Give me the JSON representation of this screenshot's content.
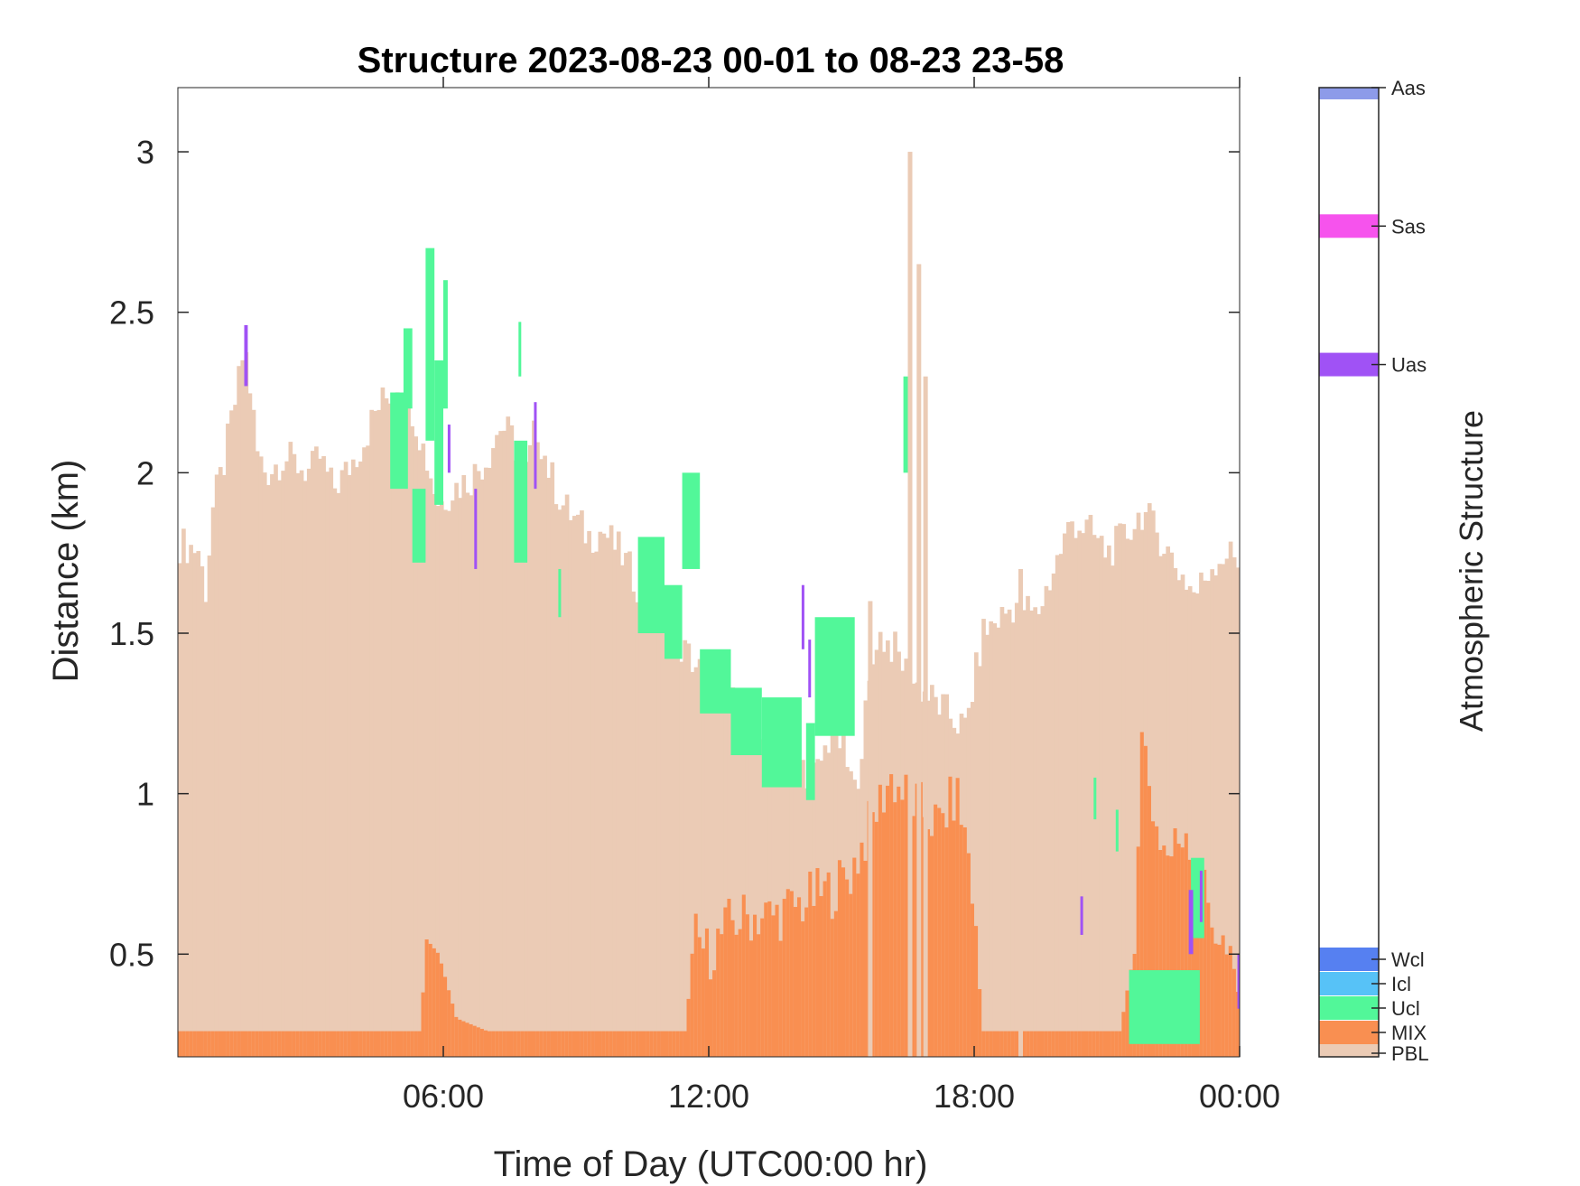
{
  "chart_data": {
    "type": "heatmap",
    "title": "Structure 2023-08-23 00-01 to 08-23 23-58",
    "xlabel": "Time of Day (UTC00:00 hr)",
    "ylabel": "Distance (km)",
    "colorbar_label": "Atmospheric Structure",
    "xlim": [
      0,
      24
    ],
    "ylim": [
      0.18,
      3.2
    ],
    "x_ticks": [
      {
        "value": 6,
        "label": "06:00"
      },
      {
        "value": 12,
        "label": "12:00"
      },
      {
        "value": 18,
        "label": "18:00"
      },
      {
        "value": 24,
        "label": "00:00"
      }
    ],
    "y_ticks": [
      {
        "value": 0.5,
        "label": "0.5"
      },
      {
        "value": 1,
        "label": "1"
      },
      {
        "value": 1.5,
        "label": "1.5"
      },
      {
        "value": 2,
        "label": "2"
      },
      {
        "value": 2.5,
        "label": "2.5"
      },
      {
        "value": 3,
        "label": "3"
      }
    ],
    "classes": [
      {
        "label": "PBL",
        "color": "#ebcbb5"
      },
      {
        "label": "MIX",
        "color": "#f98f51"
      },
      {
        "label": "Ucl",
        "color": "#52f799"
      },
      {
        "label": "Icl",
        "color": "#57c2f7"
      },
      {
        "label": "Wcl",
        "color": "#5680f1"
      },
      {
        "label": "Uas",
        "color": "#a052f5"
      },
      {
        "label": "Sas",
        "color": "#f653ed"
      },
      {
        "label": "Aas",
        "color": "#8d9be9"
      }
    ],
    "pbl_top_profile": [
      [
        0.0,
        1.78
      ],
      [
        0.5,
        1.76
      ],
      [
        0.6,
        1.6
      ],
      [
        0.8,
        1.9
      ],
      [
        1.0,
        2.0
      ],
      [
        1.2,
        2.15
      ],
      [
        1.4,
        2.3
      ],
      [
        1.5,
        2.4
      ],
      [
        1.6,
        2.3
      ],
      [
        1.8,
        2.05
      ],
      [
        2.0,
        2.0
      ],
      [
        2.4,
        2.05
      ],
      [
        3.0,
        2.0
      ],
      [
        3.2,
        2.05
      ],
      [
        3.5,
        1.95
      ],
      [
        3.8,
        2.0
      ],
      [
        4.0,
        2.05
      ],
      [
        4.2,
        2.1
      ],
      [
        4.5,
        2.2
      ],
      [
        4.8,
        2.25
      ],
      [
        5.0,
        2.3
      ],
      [
        5.3,
        2.2
      ],
      [
        5.6,
        2.05
      ],
      [
        5.9,
        1.9
      ],
      [
        6.2,
        1.95
      ],
      [
        6.6,
        1.98
      ],
      [
        7.0,
        2.05
      ],
      [
        7.3,
        2.15
      ],
      [
        7.6,
        2.1
      ],
      [
        7.8,
        1.95
      ],
      [
        8.1,
        2.15
      ],
      [
        8.4,
        2.0
      ],
      [
        8.7,
        1.9
      ],
      [
        9.0,
        1.85
      ],
      [
        9.3,
        1.8
      ],
      [
        9.6,
        1.82
      ],
      [
        10.0,
        1.75
      ],
      [
        10.4,
        1.65
      ],
      [
        10.8,
        1.55
      ],
      [
        11.2,
        1.48
      ],
      [
        11.6,
        1.42
      ],
      [
        12.0,
        1.35
      ],
      [
        12.4,
        1.3
      ],
      [
        12.8,
        1.25
      ],
      [
        13.2,
        1.2
      ],
      [
        13.6,
        1.15
      ],
      [
        14.0,
        1.1
      ],
      [
        14.4,
        1.05
      ],
      [
        14.8,
        1.2
      ],
      [
        15.0,
        1.15
      ],
      [
        15.3,
        1.0
      ],
      [
        15.8,
        1.5
      ],
      [
        16.2,
        1.45
      ],
      [
        16.6,
        1.35
      ],
      [
        17.0,
        1.3
      ],
      [
        17.4,
        1.25
      ],
      [
        17.8,
        1.2
      ],
      [
        18.2,
        1.5
      ],
      [
        18.6,
        1.55
      ],
      [
        19.0,
        1.6
      ],
      [
        19.4,
        1.55
      ],
      [
        19.8,
        1.7
      ],
      [
        20.2,
        1.85
      ],
      [
        20.6,
        1.82
      ],
      [
        21.0,
        1.75
      ],
      [
        21.4,
        1.8
      ],
      [
        21.8,
        1.88
      ],
      [
        22.2,
        1.8
      ],
      [
        22.6,
        1.7
      ],
      [
        23.0,
        1.62
      ],
      [
        23.4,
        1.72
      ],
      [
        23.7,
        1.75
      ],
      [
        24.0,
        1.72
      ]
    ],
    "pbl_spikes": [
      [
        16.5,
        3.0
      ],
      [
        16.7,
        2.65
      ],
      [
        16.85,
        2.3
      ],
      [
        15.6,
        1.6
      ],
      [
        19.0,
        1.7
      ]
    ],
    "mix_profile": [
      [
        0.0,
        0.26
      ],
      [
        5.5,
        0.26
      ],
      [
        5.6,
        0.55
      ],
      [
        5.9,
        0.5
      ],
      [
        6.3,
        0.3
      ],
      [
        7.0,
        0.26
      ],
      [
        11.5,
        0.26
      ],
      [
        11.7,
        0.55
      ],
      [
        12.0,
        0.5
      ],
      [
        12.5,
        0.6
      ],
      [
        13.0,
        0.62
      ],
      [
        13.5,
        0.62
      ],
      [
        14.0,
        0.65
      ],
      [
        14.4,
        0.68
      ],
      [
        14.8,
        0.7
      ],
      [
        15.2,
        0.75
      ],
      [
        15.5,
        0.85
      ],
      [
        15.8,
        0.95
      ],
      [
        16.1,
        1.05
      ],
      [
        16.4,
        1.0
      ],
      [
        16.8,
        0.95
      ],
      [
        17.2,
        0.9
      ],
      [
        17.6,
        1.0
      ],
      [
        17.9,
        0.8
      ],
      [
        18.2,
        0.26
      ],
      [
        21.3,
        0.26
      ],
      [
        21.6,
        0.5
      ],
      [
        21.8,
        1.2
      ],
      [
        22.1,
        0.9
      ],
      [
        22.4,
        0.8
      ],
      [
        22.8,
        0.9
      ],
      [
        23.1,
        0.75
      ],
      [
        23.4,
        0.6
      ],
      [
        23.7,
        0.5
      ],
      [
        24.0,
        0.35
      ]
    ],
    "ucl_segments": [
      {
        "t0": 4.8,
        "t1": 5.2,
        "y0": 1.95,
        "y1": 2.25
      },
      {
        "t0": 5.1,
        "t1": 5.3,
        "y0": 2.2,
        "y1": 2.45
      },
      {
        "t0": 5.3,
        "t1": 5.6,
        "y0": 1.72,
        "y1": 1.95
      },
      {
        "t0": 5.6,
        "t1": 5.8,
        "y0": 2.1,
        "y1": 2.7
      },
      {
        "t0": 5.8,
        "t1": 6.0,
        "y0": 1.9,
        "y1": 2.35
      },
      {
        "t0": 6.0,
        "t1": 6.1,
        "y0": 2.2,
        "y1": 2.6
      },
      {
        "t0": 7.6,
        "t1": 7.9,
        "y0": 1.72,
        "y1": 2.1
      },
      {
        "t0": 7.7,
        "t1": 7.75,
        "y0": 2.3,
        "y1": 2.47
      },
      {
        "t0": 8.6,
        "t1": 8.65,
        "y0": 1.55,
        "y1": 1.7
      },
      {
        "t0": 10.4,
        "t1": 11.0,
        "y0": 1.5,
        "y1": 1.8
      },
      {
        "t0": 11.0,
        "t1": 11.4,
        "y0": 1.42,
        "y1": 1.65
      },
      {
        "t0": 11.4,
        "t1": 11.8,
        "y0": 1.7,
        "y1": 2.0
      },
      {
        "t0": 11.8,
        "t1": 12.5,
        "y0": 1.25,
        "y1": 1.45
      },
      {
        "t0": 12.5,
        "t1": 13.2,
        "y0": 1.12,
        "y1": 1.33
      },
      {
        "t0": 13.2,
        "t1": 14.1,
        "y0": 1.02,
        "y1": 1.3
      },
      {
        "t0": 14.2,
        "t1": 14.4,
        "y0": 0.98,
        "y1": 1.22
      },
      {
        "t0": 14.4,
        "t1": 15.3,
        "y0": 1.18,
        "y1": 1.55
      },
      {
        "t0": 16.4,
        "t1": 16.5,
        "y0": 2.0,
        "y1": 2.3
      },
      {
        "t0": 20.7,
        "t1": 20.75,
        "y0": 0.92,
        "y1": 1.05
      },
      {
        "t0": 21.2,
        "t1": 21.25,
        "y0": 0.82,
        "y1": 0.95
      },
      {
        "t0": 21.5,
        "t1": 23.1,
        "y0": 0.22,
        "y1": 0.45
      },
      {
        "t0": 22.9,
        "t1": 23.2,
        "y0": 0.55,
        "y1": 0.8
      }
    ],
    "uas_segments": [
      {
        "t0": 1.5,
        "t1": 1.58,
        "y0": 2.27,
        "y1": 2.46
      },
      {
        "t0": 6.1,
        "t1": 6.16,
        "y0": 2.0,
        "y1": 2.15
      },
      {
        "t0": 6.7,
        "t1": 6.76,
        "y0": 1.7,
        "y1": 1.95
      },
      {
        "t0": 8.05,
        "t1": 8.11,
        "y0": 1.95,
        "y1": 2.22
      },
      {
        "t0": 14.1,
        "t1": 14.16,
        "y0": 1.45,
        "y1": 1.65
      },
      {
        "t0": 14.25,
        "t1": 14.31,
        "y0": 1.3,
        "y1": 1.48
      },
      {
        "t0": 20.4,
        "t1": 20.46,
        "y0": 0.56,
        "y1": 0.68
      },
      {
        "t0": 22.85,
        "t1": 22.95,
        "y0": 0.5,
        "y1": 0.7
      },
      {
        "t0": 23.1,
        "t1": 23.16,
        "y0": 0.6,
        "y1": 0.76
      },
      {
        "t0": 23.95,
        "t1": 24.0,
        "y0": 0.33,
        "y1": 0.5
      }
    ]
  }
}
